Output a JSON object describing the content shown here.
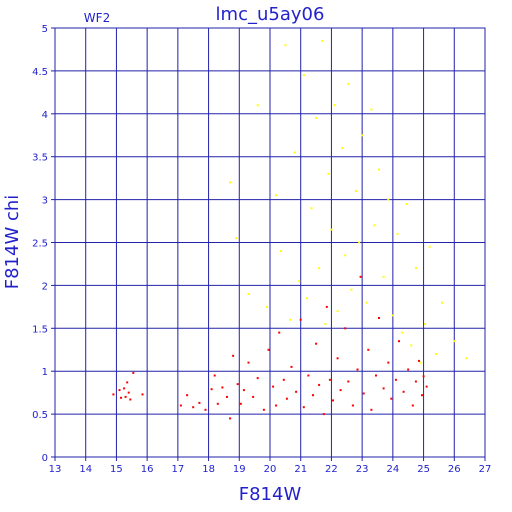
{
  "chart_data": {
    "type": "scatter",
    "title": "lmc_u5ay06",
    "chip_label": "WF2",
    "xlabel": "F814W",
    "ylabel": "F814W  chi",
    "xlim": [
      13,
      27
    ],
    "ylim": [
      0,
      5
    ],
    "x_ticks": [
      13,
      14,
      15,
      16,
      17,
      18,
      19,
      20,
      21,
      22,
      23,
      24,
      25,
      26,
      27
    ],
    "y_ticks": [
      0,
      0.5,
      1,
      1.5,
      2,
      2.5,
      3,
      3.5,
      4,
      4.5,
      5
    ],
    "y_tick_labels": [
      "0",
      "0.5",
      "1",
      "1.5",
      "2",
      "2.5",
      "3",
      "3.5",
      "4",
      "4.5",
      "5"
    ],
    "grid": true,
    "colors": {
      "frame": "#2222aa",
      "grid": "#2222aa",
      "text": "#2222cc",
      "series_good": "#ff0000",
      "series_flagged": "#ffff00"
    },
    "series": [
      {
        "key": "good",
        "points": [
          [
            14.9,
            0.73
          ],
          [
            15.1,
            0.78
          ],
          [
            15.15,
            0.69
          ],
          [
            15.25,
            0.8
          ],
          [
            15.3,
            0.7
          ],
          [
            15.35,
            0.87
          ],
          [
            15.4,
            0.75
          ],
          [
            15.45,
            0.67
          ],
          [
            15.55,
            0.98
          ],
          [
            15.85,
            0.73
          ],
          [
            17.1,
            0.6
          ],
          [
            17.3,
            0.72
          ],
          [
            17.5,
            0.58
          ],
          [
            17.7,
            0.63
          ],
          [
            17.9,
            0.55
          ],
          [
            18.1,
            0.79
          ],
          [
            18.2,
            0.95
          ],
          [
            18.3,
            0.62
          ],
          [
            18.45,
            0.81
          ],
          [
            18.6,
            0.7
          ],
          [
            18.7,
            0.45
          ],
          [
            18.8,
            1.18
          ],
          [
            18.95,
            0.85
          ],
          [
            19.05,
            0.62
          ],
          [
            19.15,
            0.78
          ],
          [
            19.3,
            1.1
          ],
          [
            19.45,
            0.7
          ],
          [
            19.6,
            0.92
          ],
          [
            19.8,
            0.55
          ],
          [
            19.95,
            1.25
          ],
          [
            20.1,
            0.82
          ],
          [
            20.2,
            0.6
          ],
          [
            20.3,
            1.45
          ],
          [
            20.45,
            0.9
          ],
          [
            20.55,
            0.68
          ],
          [
            20.7,
            1.05
          ],
          [
            20.85,
            0.76
          ],
          [
            21.0,
            1.6
          ],
          [
            21.1,
            0.58
          ],
          [
            21.25,
            0.95
          ],
          [
            21.4,
            0.72
          ],
          [
            21.5,
            1.32
          ],
          [
            21.6,
            0.84
          ],
          [
            21.75,
            0.5
          ],
          [
            21.85,
            1.75
          ],
          [
            21.95,
            0.9
          ],
          [
            22.05,
            0.66
          ],
          [
            22.2,
            1.15
          ],
          [
            22.3,
            0.78
          ],
          [
            22.45,
            1.5
          ],
          [
            22.55,
            0.88
          ],
          [
            22.7,
            0.6
          ],
          [
            22.85,
            1.02
          ],
          [
            22.95,
            2.1
          ],
          [
            23.05,
            0.74
          ],
          [
            23.2,
            1.25
          ],
          [
            23.3,
            0.55
          ],
          [
            23.45,
            0.95
          ],
          [
            23.55,
            1.62
          ],
          [
            23.7,
            0.8
          ],
          [
            23.85,
            1.1
          ],
          [
            23.95,
            0.68
          ],
          [
            24.1,
            0.9
          ],
          [
            24.2,
            1.35
          ],
          [
            24.35,
            0.76
          ],
          [
            24.5,
            1.02
          ],
          [
            24.65,
            0.6
          ],
          [
            24.75,
            0.88
          ],
          [
            24.85,
            1.12
          ],
          [
            24.95,
            0.72
          ],
          [
            25.0,
            0.94
          ],
          [
            25.1,
            0.82
          ]
        ]
      },
      {
        "key": "flagged",
        "points": [
          [
            18.7,
            3.2
          ],
          [
            18.9,
            2.55
          ],
          [
            19.3,
            1.9
          ],
          [
            19.6,
            4.1
          ],
          [
            19.9,
            1.75
          ],
          [
            20.2,
            3.05
          ],
          [
            20.35,
            2.4
          ],
          [
            20.5,
            4.8
          ],
          [
            20.65,
            1.6
          ],
          [
            20.8,
            3.55
          ],
          [
            20.95,
            2.05
          ],
          [
            21.1,
            4.45
          ],
          [
            21.2,
            1.85
          ],
          [
            21.35,
            2.9
          ],
          [
            21.5,
            3.95
          ],
          [
            21.6,
            2.2
          ],
          [
            21.7,
            4.85
          ],
          [
            21.8,
            1.55
          ],
          [
            21.9,
            3.3
          ],
          [
            22.0,
            2.65
          ],
          [
            22.1,
            4.1
          ],
          [
            22.2,
            1.7
          ],
          [
            22.35,
            3.6
          ],
          [
            22.45,
            2.35
          ],
          [
            22.55,
            4.35
          ],
          [
            22.65,
            1.95
          ],
          [
            22.8,
            3.1
          ],
          [
            22.9,
            2.5
          ],
          [
            23.0,
            3.75
          ],
          [
            23.15,
            1.8
          ],
          [
            23.3,
            4.05
          ],
          [
            23.4,
            2.7
          ],
          [
            23.55,
            3.35
          ],
          [
            23.7,
            2.1
          ],
          [
            23.85,
            3.0
          ],
          [
            24.0,
            1.65
          ],
          [
            24.15,
            2.6
          ],
          [
            24.3,
            1.45
          ],
          [
            24.45,
            2.95
          ],
          [
            24.6,
            1.3
          ],
          [
            24.75,
            2.2
          ],
          [
            24.9,
            1.1
          ],
          [
            25.05,
            1.55
          ],
          [
            25.2,
            2.45
          ],
          [
            25.4,
            1.2
          ],
          [
            25.6,
            1.8
          ],
          [
            26.0,
            1.35
          ],
          [
            26.4,
            1.15
          ]
        ]
      }
    ]
  }
}
